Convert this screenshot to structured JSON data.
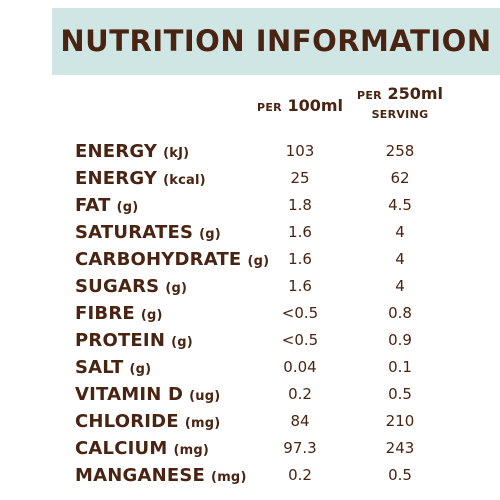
{
  "title": "NUTRITION INFORMATION",
  "colors": {
    "header_band": "#cfe6e5",
    "text": "#4a2412"
  },
  "columns": {
    "per100": {
      "prefix": "PER",
      "amount": "100ml"
    },
    "perServing": {
      "prefix": "PER",
      "amount": "250ml",
      "label": "SERVING"
    }
  },
  "rows": [
    {
      "name": "ENERGY",
      "unit": "(kJ)",
      "per100": "103",
      "perServing": "258"
    },
    {
      "name": "ENERGY",
      "unit": "(kcal)",
      "per100": "25",
      "perServing": "62"
    },
    {
      "name": "FAT",
      "unit": "(g)",
      "per100": "1.8",
      "perServing": "4.5"
    },
    {
      "name": "SATURATES",
      "unit": "(g)",
      "per100": "1.6",
      "perServing": "4"
    },
    {
      "name": "CARBOHYDRATE",
      "unit": "(g)",
      "per100": "1.6",
      "perServing": "4"
    },
    {
      "name": "SUGARS",
      "unit": "(g)",
      "per100": "1.6",
      "perServing": "4"
    },
    {
      "name": "FIBRE",
      "unit": "(g)",
      "per100": "<0.5",
      "perServing": "0.8"
    },
    {
      "name": "PROTEIN",
      "unit": "(g)",
      "per100": "<0.5",
      "perServing": "0.9"
    },
    {
      "name": "SALT",
      "unit": "(g)",
      "per100": "0.04",
      "perServing": "0.1"
    },
    {
      "name": "VITAMIN D",
      "unit": "(ug)",
      "per100": "0.2",
      "perServing": "0.5"
    },
    {
      "name": "CHLORIDE",
      "unit": "(mg)",
      "per100": "84",
      "perServing": "210"
    },
    {
      "name": "CALCIUM",
      "unit": "(mg)",
      "per100": "97.3",
      "perServing": "243"
    },
    {
      "name": "MANGANESE",
      "unit": "(mg)",
      "per100": "0.2",
      "perServing": "0.5"
    }
  ]
}
